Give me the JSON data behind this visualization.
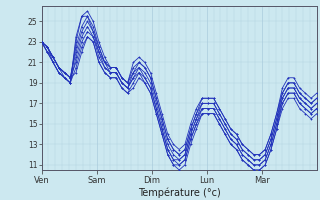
{
  "title": "",
  "xlabel": "Température (°c)",
  "ylabel": "",
  "background_color": "#cce8f0",
  "grid_color": "#aaccdd",
  "line_color": "#2233bb",
  "ylim": [
    10.5,
    26.5
  ],
  "yticks": [
    11,
    13,
    15,
    17,
    19,
    21,
    23,
    25
  ],
  "day_labels": [
    "Ven",
    "Sam",
    "Dim",
    "Lun",
    "Mar"
  ],
  "day_positions": [
    0,
    24,
    48,
    72,
    96
  ],
  "total_hours": 120,
  "series": [
    [
      23.0,
      22.5,
      21.5,
      20.5,
      19.5,
      19.0,
      23.0,
      25.5,
      26.0,
      25.0,
      23.0,
      21.5,
      20.5,
      20.5,
      19.5,
      19.0,
      20.0,
      20.5,
      19.5,
      18.5,
      16.5,
      14.5,
      12.5,
      11.5,
      11.5,
      12.0,
      14.0,
      15.5,
      16.5,
      16.5,
      16.5,
      15.5,
      14.5,
      13.5,
      13.0,
      12.0,
      11.5,
      11.0,
      11.0,
      11.5,
      13.0,
      15.0,
      17.0,
      18.0,
      18.0,
      17.0,
      16.5,
      16.0,
      16.5
    ],
    [
      23.0,
      22.0,
      21.0,
      20.0,
      19.5,
      19.0,
      23.5,
      25.5,
      25.5,
      24.5,
      22.5,
      21.0,
      20.0,
      20.0,
      19.0,
      18.5,
      19.5,
      20.0,
      19.0,
      18.0,
      16.0,
      14.0,
      12.0,
      11.0,
      11.0,
      11.5,
      13.5,
      15.0,
      16.0,
      16.0,
      16.0,
      15.0,
      14.0,
      13.0,
      12.5,
      11.5,
      11.0,
      10.5,
      10.5,
      11.0,
      12.5,
      14.5,
      16.5,
      17.5,
      17.5,
      16.5,
      16.0,
      15.5,
      16.0
    ],
    [
      23.0,
      22.5,
      21.5,
      20.5,
      20.0,
      19.5,
      22.5,
      24.5,
      25.5,
      24.0,
      22.5,
      21.0,
      20.5,
      20.5,
      19.5,
      19.0,
      20.5,
      21.0,
      20.5,
      19.5,
      17.5,
      15.5,
      13.5,
      12.5,
      12.0,
      12.5,
      14.5,
      16.0,
      17.0,
      17.0,
      17.0,
      16.0,
      15.0,
      14.0,
      13.5,
      12.5,
      12.0,
      11.5,
      11.5,
      12.0,
      13.5,
      15.5,
      17.5,
      18.5,
      18.5,
      17.5,
      17.0,
      16.5,
      17.0
    ],
    [
      23.0,
      22.0,
      21.5,
      20.5,
      20.0,
      19.5,
      22.0,
      24.0,
      25.0,
      24.0,
      22.0,
      21.0,
      20.5,
      20.5,
      19.5,
      19.0,
      21.0,
      21.5,
      21.0,
      20.0,
      18.0,
      16.0,
      14.0,
      13.0,
      12.5,
      13.0,
      15.0,
      16.5,
      17.5,
      17.5,
      17.5,
      16.5,
      15.5,
      14.5,
      14.0,
      13.0,
      12.5,
      12.0,
      12.0,
      12.5,
      14.0,
      16.0,
      18.0,
      19.0,
      19.0,
      18.0,
      17.5,
      17.0,
      17.5
    ],
    [
      23.0,
      22.5,
      21.0,
      20.0,
      19.5,
      19.0,
      21.5,
      23.5,
      24.5,
      23.5,
      22.0,
      20.5,
      20.0,
      20.0,
      19.0,
      18.5,
      20.0,
      21.0,
      20.5,
      19.5,
      17.5,
      15.5,
      13.5,
      12.5,
      12.0,
      12.5,
      14.5,
      16.0,
      17.5,
      17.5,
      17.5,
      16.5,
      15.5,
      14.5,
      14.0,
      13.0,
      12.5,
      12.0,
      12.0,
      12.5,
      14.0,
      16.0,
      18.5,
      19.5,
      19.5,
      18.5,
      18.0,
      17.5,
      18.0
    ],
    [
      23.0,
      22.5,
      21.5,
      20.5,
      20.0,
      19.5,
      21.0,
      23.0,
      24.0,
      23.5,
      21.5,
      20.5,
      20.0,
      20.0,
      19.0,
      18.5,
      19.5,
      20.5,
      20.0,
      19.0,
      17.0,
      15.0,
      13.0,
      12.0,
      11.5,
      12.0,
      14.0,
      15.5,
      17.0,
      17.0,
      17.0,
      16.0,
      15.0,
      14.0,
      13.5,
      12.5,
      12.0,
      11.5,
      11.5,
      12.0,
      13.5,
      15.5,
      18.0,
      19.0,
      19.0,
      18.0,
      17.5,
      17.0,
      17.5
    ],
    [
      23.0,
      22.0,
      21.0,
      20.0,
      19.5,
      19.0,
      20.5,
      22.5,
      23.5,
      23.0,
      21.0,
      20.0,
      19.5,
      19.5,
      18.5,
      18.0,
      19.0,
      20.0,
      19.5,
      18.5,
      16.5,
      14.5,
      12.5,
      11.5,
      11.0,
      11.5,
      13.5,
      15.0,
      16.5,
      16.5,
      16.5,
      15.5,
      14.5,
      13.5,
      13.0,
      12.0,
      11.5,
      11.0,
      11.0,
      11.5,
      13.0,
      15.0,
      17.5,
      18.5,
      18.5,
      17.5,
      17.0,
      16.5,
      17.0
    ],
    [
      23.0,
      22.5,
      21.5,
      20.5,
      20.0,
      19.5,
      20.0,
      22.0,
      23.5,
      23.0,
      21.0,
      20.0,
      19.5,
      19.5,
      18.5,
      18.0,
      18.5,
      19.5,
      19.0,
      18.0,
      16.0,
      14.0,
      12.0,
      11.0,
      10.5,
      11.0,
      13.0,
      14.5,
      16.0,
      16.0,
      16.0,
      15.0,
      14.0,
      13.0,
      12.5,
      11.5,
      11.0,
      10.5,
      10.5,
      11.0,
      12.5,
      14.5,
      17.0,
      18.0,
      18.0,
      17.0,
      16.5,
      16.0,
      16.5
    ]
  ]
}
